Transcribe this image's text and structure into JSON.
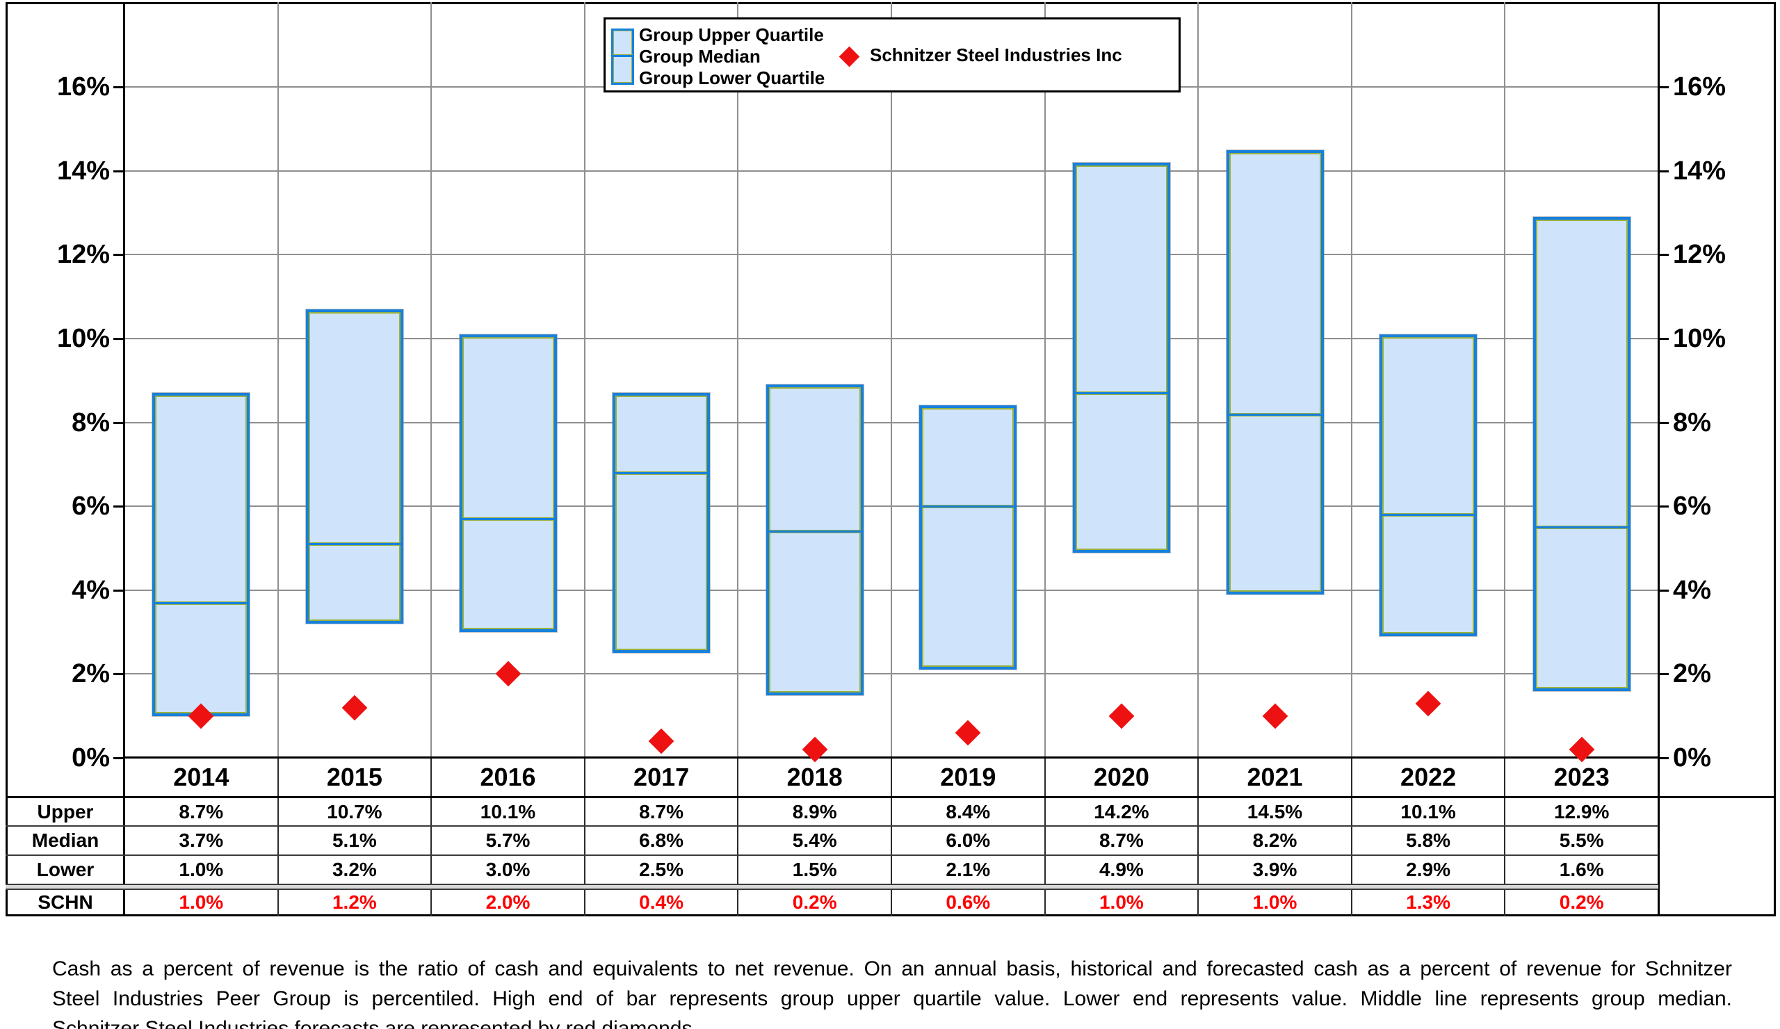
{
  "legend": {
    "bar_items": [
      "Group Upper Quartile",
      "Group Median",
      "Group Lower Quartile"
    ],
    "diamond_item": "Schnitzer Steel Industries Inc"
  },
  "chart_data": {
    "type": "bar",
    "subtype": "floating-quartile-range-bars-with-diamond-overlay",
    "title": "",
    "categories": [
      "2014",
      "2015",
      "2016",
      "2017",
      "2018",
      "2019",
      "2020",
      "2021",
      "2022",
      "2023"
    ],
    "series": [
      {
        "name": "Group Upper Quartile",
        "role": "bar-top",
        "values": [
          8.7,
          10.7,
          10.1,
          8.7,
          8.9,
          8.4,
          14.2,
          14.5,
          10.1,
          12.9
        ]
      },
      {
        "name": "Group Median",
        "role": "bar-median-line",
        "values": [
          3.7,
          5.1,
          5.7,
          6.8,
          5.4,
          6.0,
          8.7,
          8.2,
          5.8,
          5.5
        ]
      },
      {
        "name": "Group Lower Quartile",
        "role": "bar-bottom",
        "values": [
          1.0,
          3.2,
          3.0,
          2.5,
          1.5,
          2.1,
          4.9,
          3.9,
          2.9,
          1.6
        ]
      },
      {
        "name": "Schnitzer Steel Industries Inc",
        "role": "scatter-diamond",
        "values": [
          1.0,
          1.2,
          2.0,
          0.4,
          0.2,
          0.6,
          1.0,
          1.0,
          1.3,
          0.2
        ]
      }
    ],
    "ylim": [
      0,
      18
    ],
    "yticks": [
      0,
      2,
      4,
      6,
      8,
      10,
      12,
      14,
      16
    ],
    "ytick_suffix": "%",
    "y_axis_sides": [
      "left",
      "right"
    ],
    "grid": true,
    "legend_position": "top-center"
  },
  "table": {
    "rows": [
      {
        "label": "Upper",
        "color": "black",
        "values": [
          "8.7%",
          "10.7%",
          "10.1%",
          "8.7%",
          "8.9%",
          "8.4%",
          "14.2%",
          "14.5%",
          "10.1%",
          "12.9%"
        ]
      },
      {
        "label": "Median",
        "color": "black",
        "values": [
          "3.7%",
          "5.1%",
          "5.7%",
          "6.8%",
          "5.4%",
          "6.0%",
          "8.7%",
          "8.2%",
          "5.8%",
          "5.5%"
        ]
      },
      {
        "label": "Lower",
        "color": "black",
        "values": [
          "1.0%",
          "3.2%",
          "3.0%",
          "2.5%",
          "1.5%",
          "2.1%",
          "4.9%",
          "3.9%",
          "2.9%",
          "1.6%"
        ]
      },
      {
        "label": "SCHN",
        "color": "red",
        "values": [
          "1.0%",
          "1.2%",
          "2.0%",
          "0.4%",
          "0.2%",
          "0.6%",
          "1.0%",
          "1.0%",
          "1.3%",
          "0.2%"
        ]
      }
    ]
  },
  "footnote": {
    "lines": [
      "Cash as a percent of revenue is the ratio of cash and equivalents to net revenue.  On an annual basis, historical and forecasted cash as a percent of revenue for Schnitzer",
      "Steel Industries Peer Group is percentiled.  High end of bar represents group upper quartile value.  Lower end represents value.  Middle line represents group median.",
      "Schnitzer Steel Industries forecasts are represented by red diamonds."
    ]
  },
  "colors": {
    "bar_fill": "#cfe4fa",
    "bar_border": "#1680dc",
    "bar_accent": "#9ab23f",
    "diamond": "#ee1111",
    "schn_text": "#ff0000",
    "gridline": "#8f8f8f",
    "axis": "#000000"
  }
}
